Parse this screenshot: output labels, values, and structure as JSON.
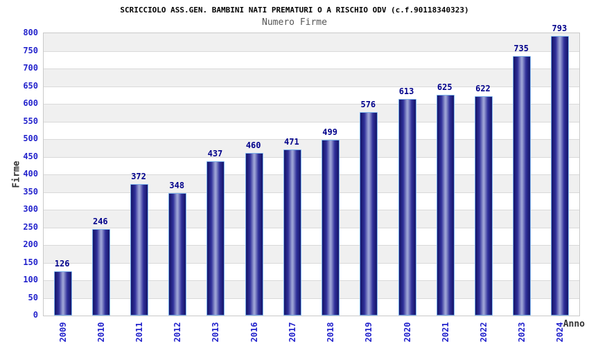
{
  "chart_data": {
    "type": "bar",
    "title": "SCRICCIOLO ASS.GEN. BAMBINI NATI PREMATURI O A RISCHIO ODV (c.f.90118340323)",
    "subtitle": "Numero Firme",
    "xlabel": "Anno",
    "ylabel": "Firme",
    "categories": [
      "2009",
      "2010",
      "2011",
      "2012",
      "2013",
      "2016",
      "2017",
      "2018",
      "2019",
      "2020",
      "2021",
      "2022",
      "2023",
      "2024"
    ],
    "values": [
      126,
      246,
      372,
      348,
      437,
      460,
      471,
      499,
      576,
      613,
      625,
      622,
      735,
      793
    ],
    "ylim": [
      0,
      800
    ],
    "ytick_step": 50,
    "grid": true,
    "legend": "none",
    "colors": {
      "bar_edge": "#1a1a72",
      "bar_inner": "#30309a",
      "bar_mid": "#9aa0d4",
      "bar_border": "#7ab0ea",
      "tick_label": "#2323cc",
      "value_label": "#00008b",
      "band": "#f0f0f0",
      "gridline": "#d9d9d9",
      "plot_border": "#c9c9c9",
      "title_color": "#000000",
      "subtitle_color": "#555555",
      "axis_title_color": "#333333"
    }
  }
}
